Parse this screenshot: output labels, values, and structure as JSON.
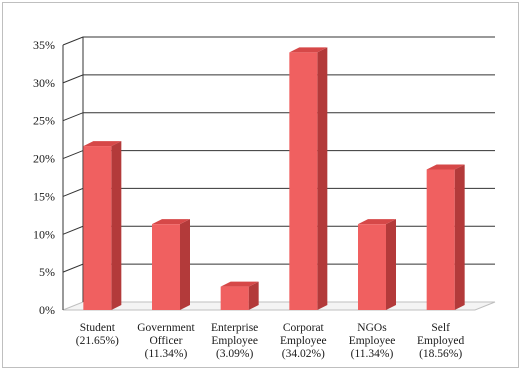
{
  "chart_data": {
    "type": "bar",
    "style": "3d-column",
    "categories": [
      [
        "Student",
        "(21.65%)"
      ],
      [
        "Government",
        "Officer",
        "(11.34%)"
      ],
      [
        "Enterprise",
        "Employee",
        "(3.09%)"
      ],
      [
        "Corporat",
        "Employee",
        "(34.02%)"
      ],
      [
        "NGOs",
        "Employee",
        "(11.34%)"
      ],
      [
        "Self",
        "Employed",
        "(18.56%)"
      ]
    ],
    "values": [
      21.65,
      11.34,
      3.09,
      34.02,
      11.34,
      18.56
    ],
    "ylim": [
      0,
      35
    ],
    "yticks": [
      0,
      5,
      10,
      15,
      20,
      25,
      30,
      35
    ],
    "ytick_labels": [
      "0%",
      "5%",
      "10%",
      "15%",
      "20%",
      "25%",
      "30%",
      "35%"
    ],
    "grid": true,
    "legend": "none",
    "colors": {
      "bar_front": "#f06060",
      "bar_side": "#b33a3a",
      "bar_top": "#d64848",
      "grid": "#333333",
      "floor": "#bfbfbf"
    }
  }
}
